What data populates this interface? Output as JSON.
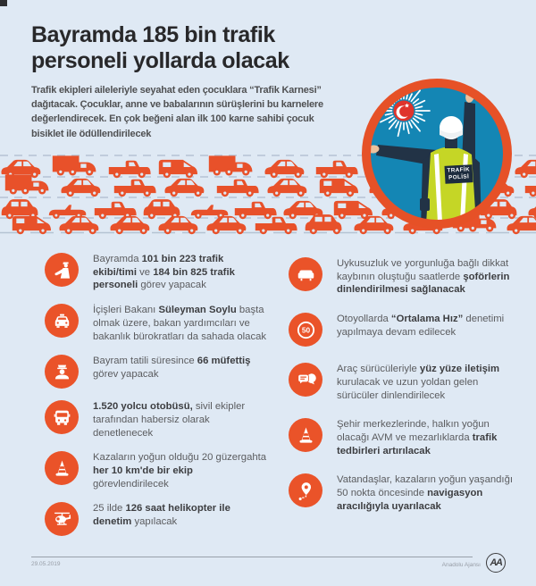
{
  "colors": {
    "background": "#dfe9f4",
    "accent_orange": "#ea5329",
    "vehicle_orange": "#e8512a",
    "hero_sky_blue": "#1486b4",
    "vest_green": "#c5d626"
  },
  "header": {
    "title_lines": [
      "Bayramda 185 bin trafik",
      "personeli yollarda olacak"
    ],
    "subtitle": "Trafik ekipleri aileleriyle seyahat eden çocuklara “Trafik Karnesi”\ndağıtacak. Çocuklar, anne ve babalarının sürüşlerini bu karnelere\ndeğerlendirecek. En çok beğeni alan ilk 100 karne sahibi çocuk\nbisiklet ile ödüllendirilecek"
  },
  "hero": {
    "description": "trafik polisi illüstrasyonu",
    "vest_label_line1": "TRAFİK",
    "vest_label_line2": "POLİSİ"
  },
  "traffic_illustration": {
    "description": "trafik sıkışıklığı illüstrasyonu"
  },
  "items_left": [
    {
      "icon": "traffic-officer-icon",
      "segments": [
        [
          "Bayramda ",
          0
        ],
        [
          "101 bin 223 trafik ekibi/timi",
          1
        ],
        [
          " ve ",
          0
        ],
        [
          "184 bin 825 trafik personeli",
          1
        ],
        [
          " görev yapacak",
          0
        ]
      ]
    },
    {
      "icon": "police-car-icon",
      "segments": [
        [
          "İçişleri Bakanı ",
          0
        ],
        [
          "Süleyman Soylu",
          1
        ],
        [
          " başta olmak üzere, bakan yardımcıları ve bakanlık bürokratları da sahada olacak",
          0
        ]
      ]
    },
    {
      "icon": "inspector-icon",
      "segments": [
        [
          "Bayram tatili süresince ",
          0
        ],
        [
          "66 müfettiş",
          1
        ],
        [
          " görev yapacak",
          0
        ]
      ]
    },
    {
      "icon": "bus-icon",
      "segments": [
        [
          "1.520 yolcu otobüsü,",
          1
        ],
        [
          " sivil ekipler tarafından habersiz olarak denetlenecek",
          0
        ]
      ]
    },
    {
      "icon": "traffic-cone-icon",
      "segments": [
        [
          "Kazaların yoğun olduğu 20 güzergahta ",
          0
        ],
        [
          "her 10 km'de bir ekip",
          1
        ],
        [
          " görevlendirilecek",
          0
        ]
      ]
    },
    {
      "icon": "helicopter-icon",
      "segments": [
        [
          "25 ilde ",
          0
        ],
        [
          "126 saat helikopter ile denetim",
          1
        ],
        [
          " yapılacak",
          0
        ]
      ]
    }
  ],
  "items_right": [
    {
      "icon": "sofa-icon",
      "segments": [
        [
          "Uykusuzluk ve yorgunluğa bağlı dikkat kaybının oluştuğu saatlerde ",
          0
        ],
        [
          "şoförlerin dinlendirilmesi sağlanacak",
          1
        ]
      ]
    },
    {
      "icon": "speed-limit-50-icon",
      "icon_value": "50",
      "segments": [
        [
          "Otoyollarda ",
          0
        ],
        [
          "“Ortalama Hız”",
          1
        ],
        [
          " denetimi yapılmaya devam edilecek",
          0
        ]
      ]
    },
    {
      "icon": "chat-bubbles-icon",
      "segments": [
        [
          "Araç sürücüleriyle ",
          0
        ],
        [
          "yüz yüze iletişim",
          1
        ],
        [
          " kurulacak ve uzun yoldan gelen sürücüler dinlendirilecek",
          0
        ]
      ]
    },
    {
      "icon": "traffic-cone-icon",
      "segments": [
        [
          "Şehir merkezlerinde, halkın yoğun olacağı AVM ve mezarlıklarda ",
          0
        ],
        [
          "trafik tedbirleri artırılacak",
          1
        ]
      ]
    },
    {
      "icon": "navigation-pin-icon",
      "segments": [
        [
          "Vatandaşlar, kazaların yoğun yaşandığı 50 nokta öncesinde ",
          0
        ],
        [
          "navigasyon aracılığıyla uyarılacak",
          1
        ]
      ]
    }
  ],
  "footer": {
    "date": "29.05.2019",
    "agency": "Anadolu Ajansı",
    "logo_text": "AA"
  }
}
